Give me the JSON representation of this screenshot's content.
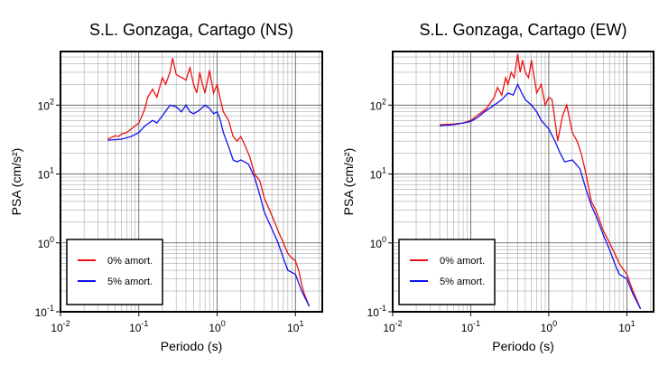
{
  "chart_data": [
    {
      "type": "line",
      "title": "S.L. Gonzaga, Cartago (NS)",
      "xlabel": "Periodo (s)",
      "ylabel": "PSA (cm/s²)",
      "xscale": "log",
      "yscale": "log",
      "grid": true,
      "legend": "lower left",
      "xlim": [
        0.01,
        22
      ],
      "ylim": [
        0.1,
        600
      ],
      "xticks": [
        {
          "value": 0.01,
          "label": "10^-2"
        },
        {
          "value": 0.1,
          "label": "10^-1"
        },
        {
          "value": 1,
          "label": "10^0"
        },
        {
          "value": 10,
          "label": "10^1"
        }
      ],
      "yticks": [
        {
          "value": 0.1,
          "label": "10^-1"
        },
        {
          "value": 1,
          "label": "10^0"
        },
        {
          "value": 10,
          "label": "10^1"
        },
        {
          "value": 100,
          "label": "10^2"
        }
      ],
      "series": [
        {
          "name": "0% amort.",
          "color": "#ee1111",
          "x": [
            0.04,
            0.045,
            0.05,
            0.055,
            0.06,
            0.07,
            0.08,
            0.09,
            0.1,
            0.11,
            0.12,
            0.13,
            0.15,
            0.17,
            0.2,
            0.22,
            0.25,
            0.27,
            0.3,
            0.33,
            0.36,
            0.4,
            0.45,
            0.5,
            0.55,
            0.6,
            0.65,
            0.7,
            0.8,
            0.9,
            1.0,
            1.1,
            1.2,
            1.4,
            1.6,
            1.8,
            2.0,
            2.3,
            2.6,
            3,
            3.5,
            4,
            5,
            6,
            7,
            8,
            9,
            10,
            11,
            12,
            13,
            15
          ],
          "values": [
            32,
            34,
            36,
            35,
            38,
            40,
            45,
            50,
            55,
            70,
            90,
            130,
            170,
            130,
            250,
            200,
            300,
            480,
            280,
            260,
            250,
            230,
            350,
            200,
            150,
            300,
            200,
            150,
            320,
            150,
            200,
            120,
            80,
            60,
            35,
            30,
            35,
            25,
            18,
            10,
            8,
            4.5,
            2.5,
            1.5,
            1.0,
            0.7,
            0.6,
            0.55,
            0.4,
            0.25,
            0.18,
            0.12
          ]
        },
        {
          "name": "5% amort.",
          "color": "#1111ee",
          "x": [
            0.04,
            0.06,
            0.08,
            0.1,
            0.12,
            0.15,
            0.17,
            0.2,
            0.25,
            0.3,
            0.35,
            0.4,
            0.45,
            0.5,
            0.6,
            0.7,
            0.8,
            0.9,
            1.0,
            1.1,
            1.2,
            1.4,
            1.6,
            1.8,
            2.0,
            2.5,
            3,
            3.5,
            4,
            5,
            6,
            7,
            8,
            10,
            12,
            15
          ],
          "values": [
            31,
            32,
            35,
            40,
            50,
            60,
            55,
            70,
            100,
            95,
            80,
            100,
            80,
            75,
            85,
            100,
            90,
            75,
            80,
            60,
            40,
            25,
            16,
            15,
            16,
            14,
            9,
            5,
            2.8,
            1.6,
            1.0,
            0.6,
            0.4,
            0.35,
            0.2,
            0.12
          ]
        }
      ]
    },
    {
      "type": "line",
      "title": "S.L. Gonzaga, Cartago (EW)",
      "xlabel": "Periodo (s)",
      "ylabel": "PSA (cm/s²)",
      "xscale": "log",
      "yscale": "log",
      "grid": true,
      "legend": "lower left",
      "xlim": [
        0.01,
        22
      ],
      "ylim": [
        0.1,
        600
      ],
      "xticks": [
        {
          "value": 0.01,
          "label": "10^-2"
        },
        {
          "value": 0.1,
          "label": "10^-1"
        },
        {
          "value": 1,
          "label": "10^0"
        },
        {
          "value": 10,
          "label": "10^1"
        }
      ],
      "yticks": [
        {
          "value": 0.1,
          "label": "10^-1"
        },
        {
          "value": 1,
          "label": "10^0"
        },
        {
          "value": 10,
          "label": "10^1"
        },
        {
          "value": 100,
          "label": "10^2"
        }
      ],
      "series": [
        {
          "name": "0% amort.",
          "color": "#ee1111",
          "x": [
            0.04,
            0.06,
            0.08,
            0.1,
            0.12,
            0.14,
            0.16,
            0.18,
            0.2,
            0.22,
            0.25,
            0.28,
            0.3,
            0.33,
            0.36,
            0.4,
            0.43,
            0.46,
            0.5,
            0.55,
            0.6,
            0.65,
            0.7,
            0.8,
            0.9,
            1.0,
            1.1,
            1.2,
            1.3,
            1.5,
            1.7,
            2.0,
            2.3,
            2.6,
            3,
            3.5,
            4,
            5,
            6,
            7,
            8,
            10,
            12,
            15
          ],
          "values": [
            52,
            53,
            55,
            60,
            70,
            80,
            90,
            110,
            130,
            180,
            140,
            250,
            200,
            300,
            250,
            550,
            300,
            450,
            300,
            250,
            450,
            250,
            150,
            200,
            100,
            130,
            120,
            60,
            30,
            70,
            100,
            40,
            30,
            20,
            10,
            4,
            3,
            1.5,
            1.0,
            0.7,
            0.5,
            0.35,
            0.2,
            0.11
          ]
        },
        {
          "name": "5% amort.",
          "color": "#1111ee",
          "x": [
            0.04,
            0.06,
            0.08,
            0.1,
            0.12,
            0.15,
            0.2,
            0.25,
            0.3,
            0.35,
            0.4,
            0.45,
            0.5,
            0.6,
            0.7,
            0.8,
            1.0,
            1.2,
            1.4,
            1.6,
            2.0,
            2.5,
            3,
            3.5,
            4,
            5,
            6,
            7,
            8,
            10,
            12,
            15
          ],
          "values": [
            50,
            52,
            55,
            58,
            65,
            80,
            100,
            120,
            150,
            140,
            200,
            150,
            120,
            100,
            80,
            60,
            45,
            30,
            20,
            15,
            16,
            12,
            6,
            3.5,
            2.5,
            1.3,
            0.8,
            0.5,
            0.35,
            0.3,
            0.18,
            0.11
          ]
        }
      ]
    }
  ]
}
